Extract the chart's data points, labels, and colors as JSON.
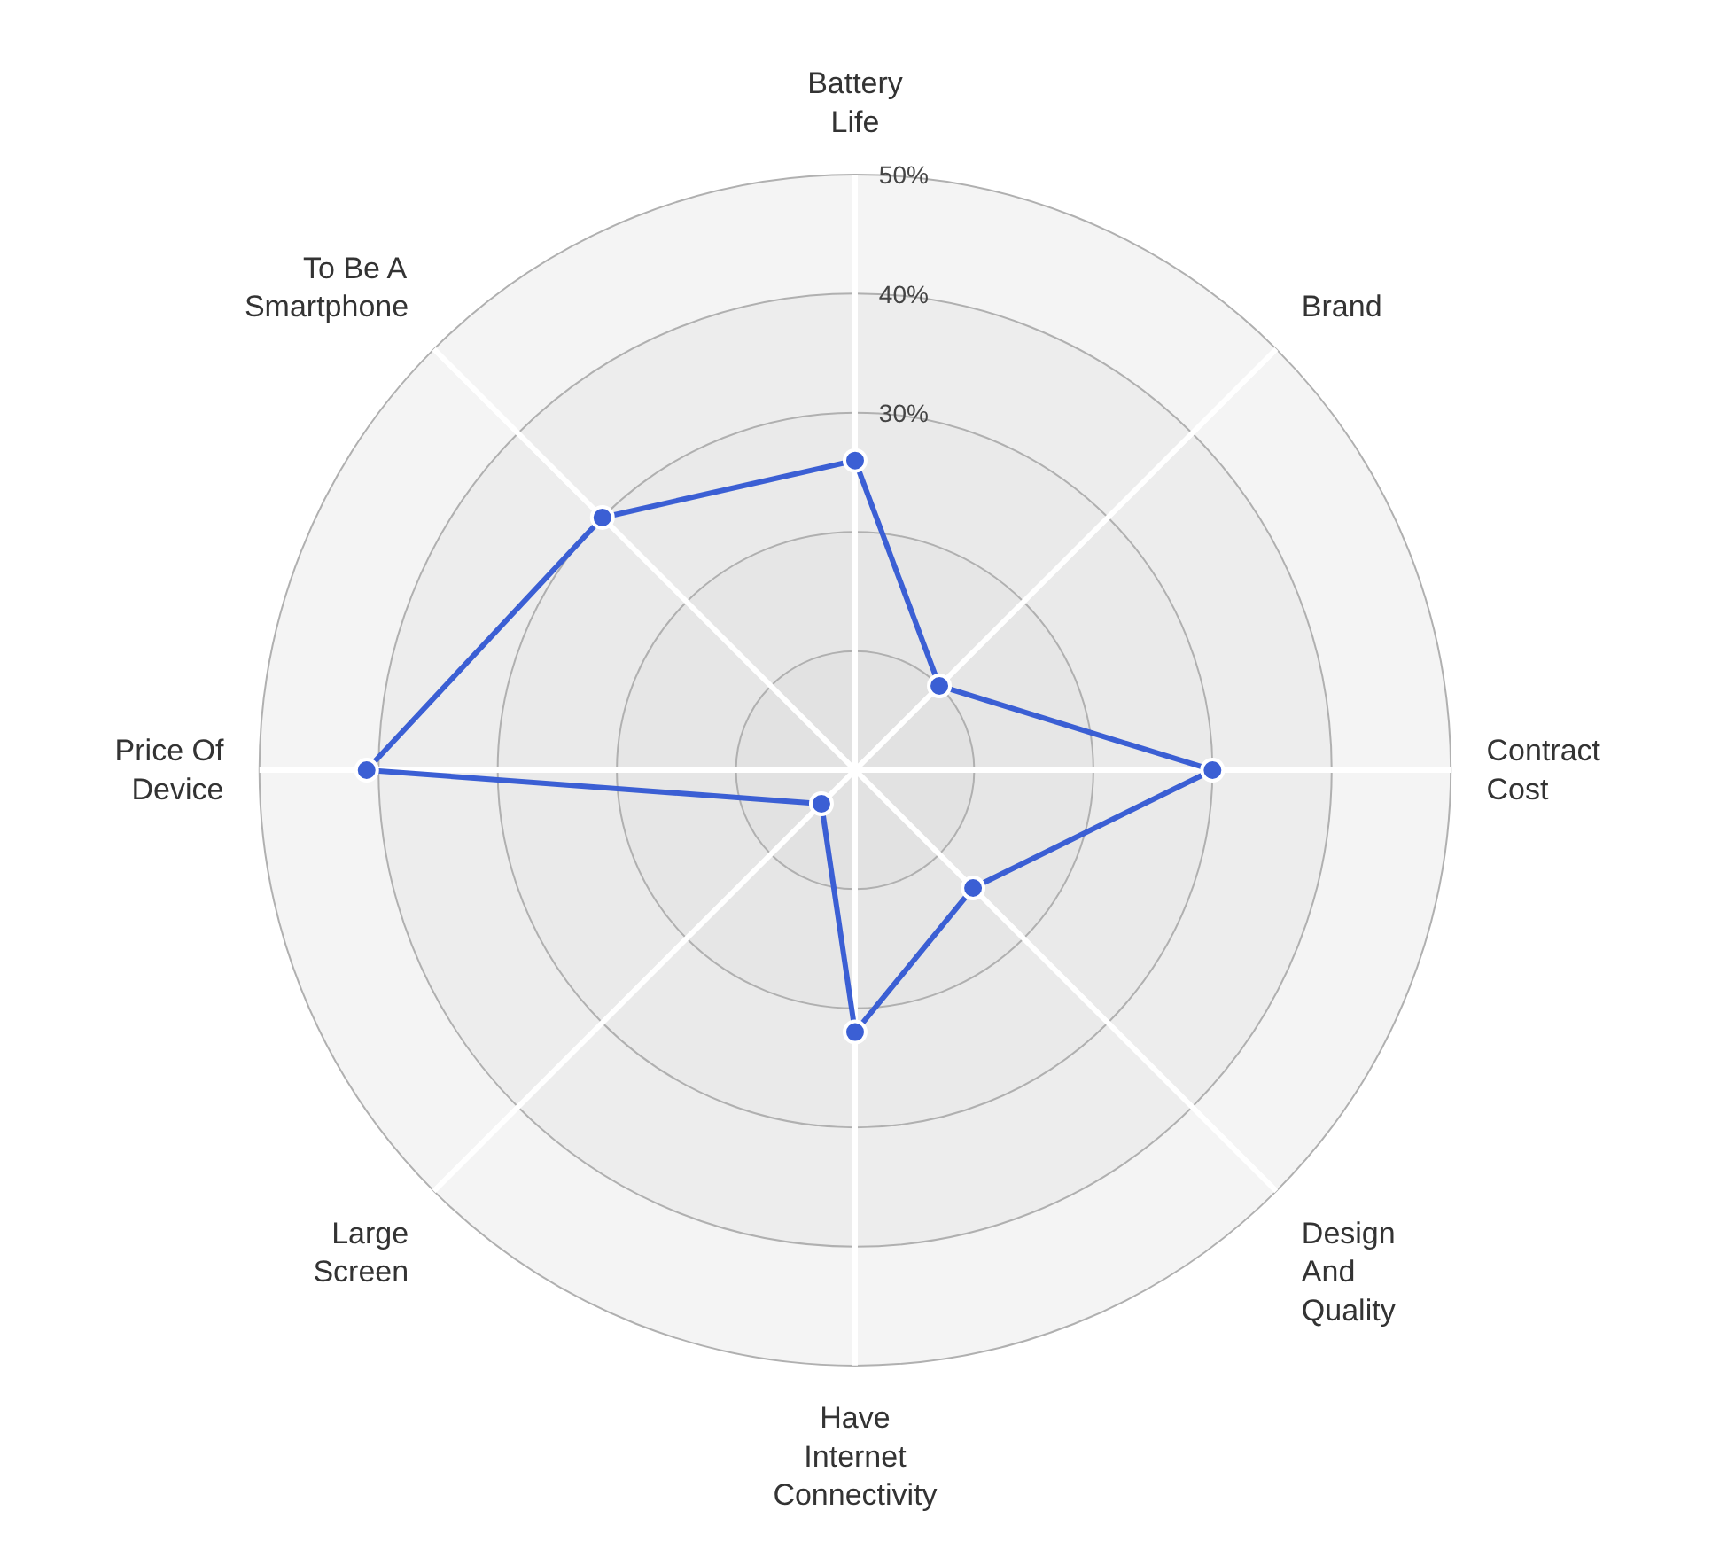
{
  "chart_data": {
    "type": "radar",
    "categories": [
      "Battery Life",
      "Brand",
      "Contract Cost",
      "Design And Quality",
      "Have Internet Connectivity",
      "Large Screen",
      "Price Of Device",
      "To Be A Smartphone"
    ],
    "series": [
      {
        "color": "#3b5fd4",
        "values": [
          26,
          10,
          30,
          14,
          22,
          4,
          41,
          30
        ]
      }
    ],
    "ylim": [
      0,
      50
    ],
    "yticks": [
      {
        "value": 30,
        "label": "30%"
      },
      {
        "value": 40,
        "label": "40%"
      },
      {
        "value": 50,
        "label": "50%"
      }
    ],
    "grid": true,
    "marker": "circle"
  }
}
